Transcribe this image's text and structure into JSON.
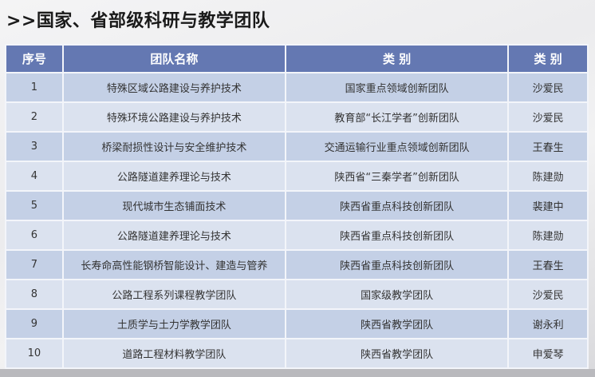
{
  "title": ">>国家、省部级科研与教学团队",
  "table": {
    "headers": [
      "序号",
      "团队名称",
      "类 别",
      "类 别"
    ],
    "rows": [
      [
        "1",
        "特殊区域公路建设与养护技术",
        "国家重点领域创新团队",
        "沙爱民"
      ],
      [
        "2",
        "特殊环境公路建设与养护技术",
        "教育部“长江学者”创新团队",
        "沙爱民"
      ],
      [
        "3",
        "桥梁耐损性设计与安全维护技术",
        "交通运输行业重点领域创新团队",
        "王春生"
      ],
      [
        "4",
        "公路隧道建养理论与技术",
        "陕西省“三秦学者”创新团队",
        "陈建勋"
      ],
      [
        "5",
        "现代城市生态铺面技术",
        "陕西省重点科技创新团队",
        "裴建中"
      ],
      [
        "6",
        "公路隧道建养理论与技术",
        "陕西省重点科技创新团队",
        "陈建勋"
      ],
      [
        "7",
        "长寿命高性能钢桥智能设计、建造与管养",
        "陕西省重点科技创新团队",
        "王春生"
      ],
      [
        "8",
        "公路工程系列课程教学团队",
        "国家级教学团队",
        "沙爱民"
      ],
      [
        "9",
        "土质学与土力学教学团队",
        "陕西省教学团队",
        "谢永利"
      ],
      [
        "10",
        "道路工程材料教学团队",
        "陕西省教学团队",
        "申爱琴"
      ]
    ]
  },
  "colors": {
    "header": "#6478b2",
    "row_odd": "#c4d0e6",
    "row_even": "#dbe2ef"
  }
}
